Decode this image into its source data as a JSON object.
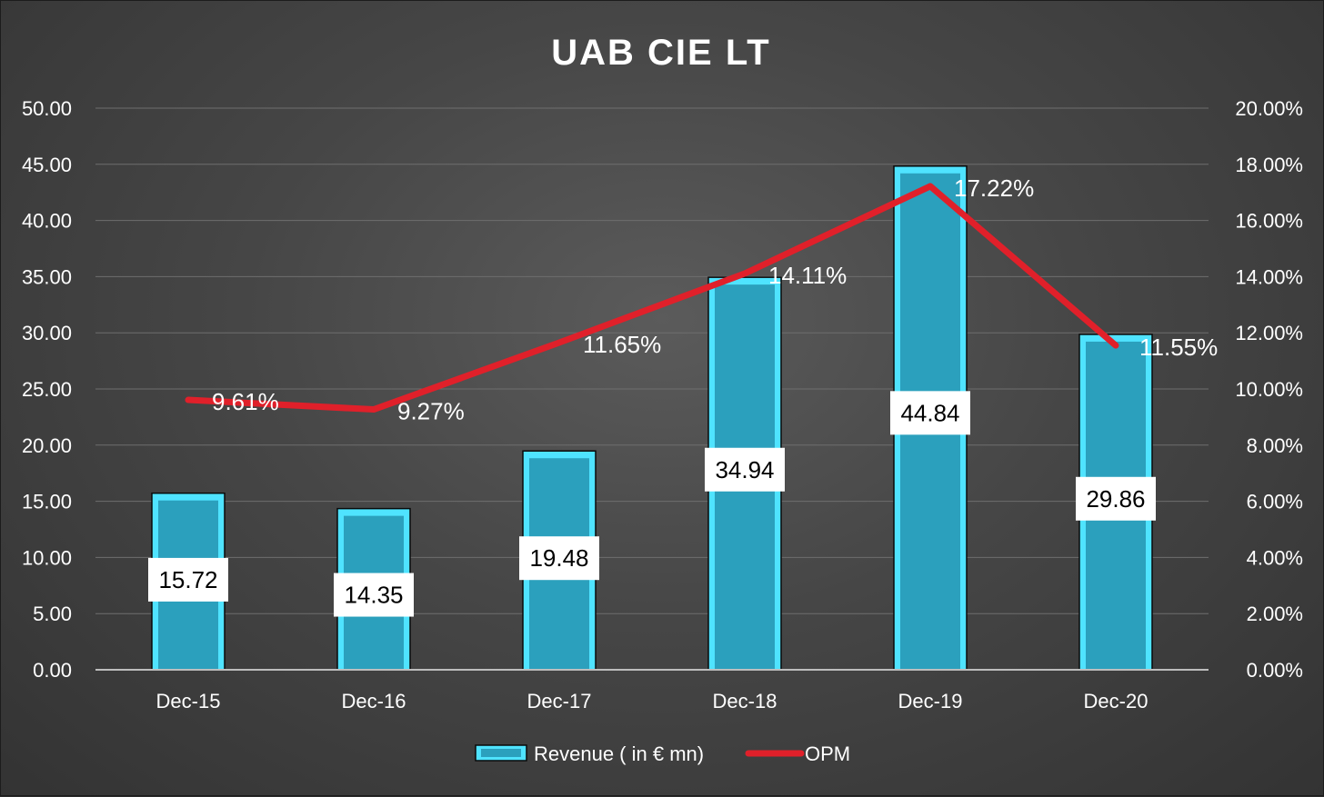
{
  "chart_data": {
    "type": "bar",
    "title": "UAB CIE LT",
    "categories": [
      "Dec-15",
      "Dec-16",
      "Dec-17",
      "Dec-18",
      "Dec-19",
      "Dec-20"
    ],
    "series": [
      {
        "name": "Revenue ( in € mn)",
        "type": "bar",
        "axis": "left",
        "values": [
          15.72,
          14.35,
          19.48,
          34.94,
          44.84,
          29.86
        ],
        "labels": [
          "15.72",
          "14.35",
          "19.48",
          "34.94",
          "44.84",
          "29.86"
        ],
        "color": "#2ba0bd",
        "edge_color": "#4fe3ff"
      },
      {
        "name": "OPM",
        "type": "line",
        "axis": "right",
        "values": [
          9.61,
          9.27,
          11.65,
          14.11,
          17.22,
          11.55
        ],
        "labels": [
          "9.61%",
          "9.27%",
          "11.65%",
          "14.11%",
          "17.22%",
          "11.55%"
        ],
        "color": "#e0202a"
      }
    ],
    "y_left": {
      "range": [
        0,
        50
      ],
      "ticks": [
        "0.00",
        "5.00",
        "10.00",
        "15.00",
        "20.00",
        "25.00",
        "30.00",
        "35.00",
        "40.00",
        "45.00",
        "50.00"
      ]
    },
    "y_right": {
      "range": [
        0,
        20
      ],
      "ticks": [
        "0.00%",
        "2.00%",
        "4.00%",
        "6.00%",
        "8.00%",
        "10.00%",
        "12.00%",
        "14.00%",
        "16.00%",
        "18.00%",
        "20.00%"
      ]
    },
    "grid": true,
    "legend": "bottom",
    "background": "#454545"
  }
}
